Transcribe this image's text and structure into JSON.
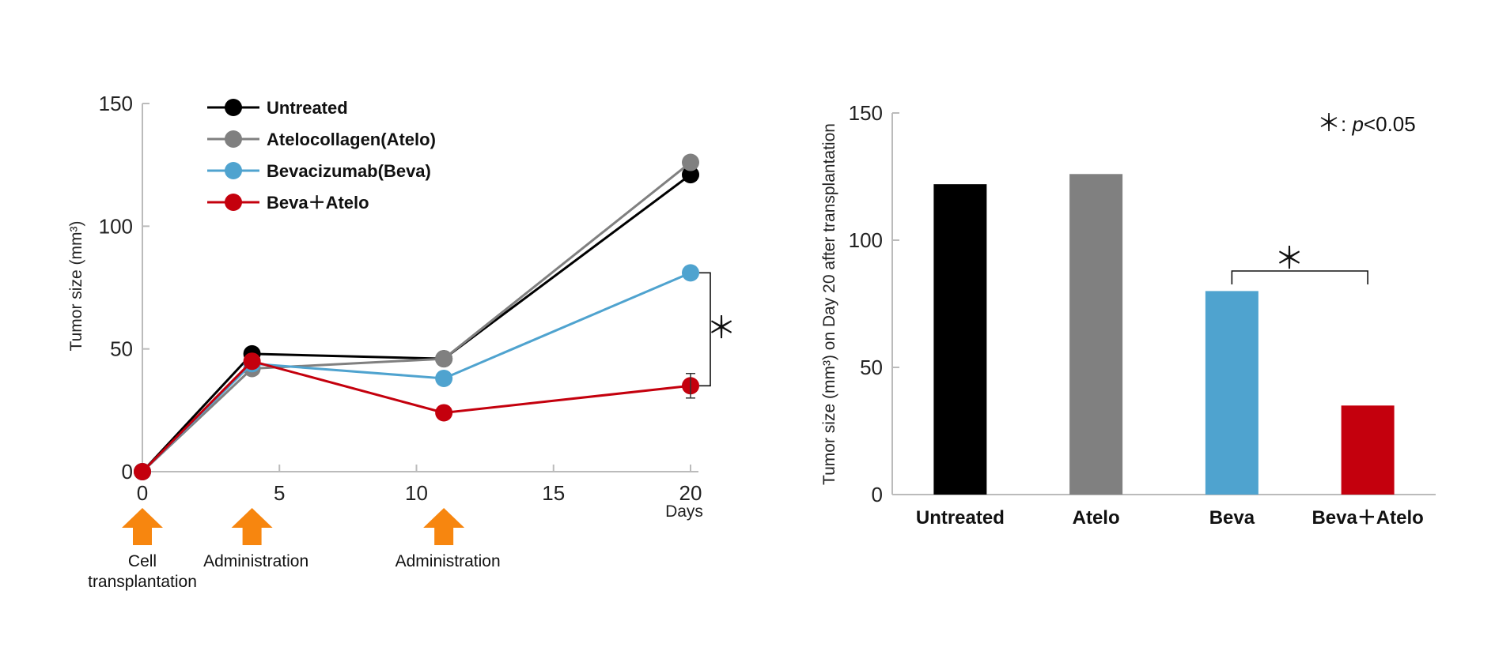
{
  "chart_data": [
    {
      "type": "line",
      "x": [
        0,
        4,
        11,
        20
      ],
      "xlabel": "Days",
      "ylabel": "Tumor size (mm³)",
      "xlim": [
        0,
        20
      ],
      "ylim": [
        0,
        150
      ],
      "x_ticks": [
        0,
        5,
        10,
        15,
        20
      ],
      "y_ticks": [
        0,
        50,
        100,
        150
      ],
      "grid": false,
      "legend_position": "top-left",
      "series": [
        {
          "name": "Untreated",
          "color": "#000000",
          "values": [
            0,
            48,
            46,
            121
          ]
        },
        {
          "name": "Atelocollagen(Atelo)",
          "color": "#808080",
          "values": [
            0,
            42,
            46,
            126
          ]
        },
        {
          "name": "Bevacizumab(Beva)",
          "color": "#4fa3cf",
          "values": [
            0,
            44,
            38,
            81
          ]
        },
        {
          "name": "Beva＋Atelo",
          "color": "#c4000d",
          "values": [
            0,
            45,
            24,
            35
          ],
          "error_bar_day20": [
            30,
            40
          ]
        }
      ],
      "significance_mark": "＊",
      "annotations": [
        {
          "day": 0,
          "label_lines": [
            "Cell",
            "transplantation"
          ]
        },
        {
          "day": 4,
          "label_lines": [
            "Administration"
          ]
        },
        {
          "day": 11,
          "label_lines": [
            "Administration"
          ]
        }
      ],
      "arrow_color": "#f7860f"
    },
    {
      "type": "bar",
      "categories": [
        "Untreated",
        "Atelo",
        "Beva",
        "Beva＋Atelo"
      ],
      "values": [
        122,
        126,
        80,
        35
      ],
      "colors": [
        "#000000",
        "#808080",
        "#4fa3cf",
        "#c4000d"
      ],
      "ylabel": "Tumor size (mm³) on Day 20 after transplantation",
      "ylim": [
        0,
        150
      ],
      "y_ticks": [
        0,
        50,
        100,
        150
      ],
      "grid": false,
      "significance_mark": "＊",
      "significance_pair": [
        "Beva",
        "Beva＋Atelo"
      ],
      "p_note": {
        "mark": "＊",
        "sep": ": ",
        "p": "p",
        "rest": "<0.05"
      }
    }
  ]
}
